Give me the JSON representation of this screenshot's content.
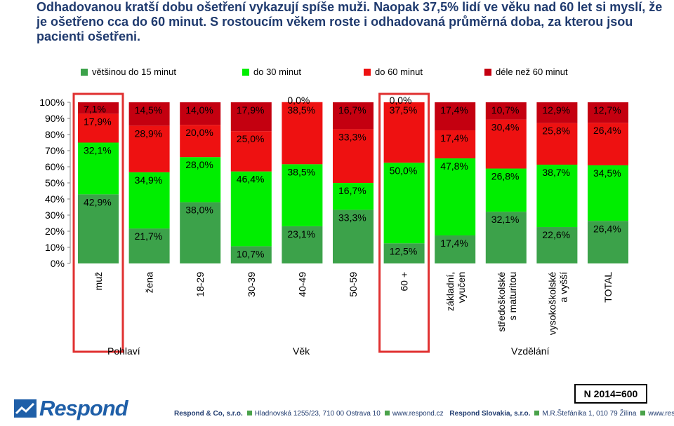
{
  "headline": "Odhadovanou kratší dobu ošetření vykazují spíše muži. Naopak 37,5% lidí ve věku nad 60 let si myslí, že je ošetřeno cca do 60 minut. S rostoucím věkem roste i odhadovaná průměrná doba, za kterou jsou pacienti ošetřeni.",
  "colors": {
    "s1": "#3ca24a",
    "s2": "#00ee00",
    "s3": "#ee1111",
    "s4": "#c40010",
    "highlight": "#e03030"
  },
  "groups": [
    "Pohlaví",
    "Věk",
    "Vzdělání"
  ],
  "sample": "N 2014=600",
  "footer": {
    "company1": "Respond & Co, s.r.o.",
    "address1": "Hladnovská 1255/23, 710 00  Ostrava 10",
    "web1": "www.respond.cz",
    "company2": "Respond Slovakia, s.r.o.",
    "address2": "M.R.Štefánika 1, 010 79  Žilina",
    "web2": "www.respond.sk",
    "logo_text": "Respond"
  },
  "chart_data": {
    "type": "bar",
    "stacked": true,
    "categories": [
      "muž",
      "žena",
      "18-29",
      "30-39",
      "40-49",
      "50-59",
      "60 +",
      "základní, vyučen",
      "středoškolské s maturitou",
      "vysokoškolské a vyšší",
      "TOTAL"
    ],
    "ylim": [
      0,
      100
    ],
    "yticks": [
      "0%",
      "10%",
      "20%",
      "30%",
      "40%",
      "50%",
      "60%",
      "70%",
      "80%",
      "90%",
      "100%"
    ],
    "series": [
      {
        "name": "většinou do 15 minut",
        "values": [
          42.9,
          21.7,
          38.0,
          10.7,
          23.1,
          33.3,
          12.5,
          17.4,
          32.1,
          22.6,
          26.4
        ],
        "labels": [
          "42,9%",
          "21,7%",
          "38,0%",
          "10,7%",
          "23,1%",
          "33,3%",
          "12,5%",
          "17,4%",
          "32,1%",
          "22,6%",
          "26,4%"
        ]
      },
      {
        "name": "do 30 minut",
        "values": [
          32.1,
          34.9,
          28.0,
          46.4,
          38.5,
          16.7,
          50.0,
          47.8,
          26.8,
          38.7,
          34.5
        ],
        "labels": [
          "32,1%",
          "34,9%",
          "28,0%",
          "46,4%",
          "38,5%",
          "16,7%",
          "50,0%",
          "47,8%",
          "26,8%",
          "38,7%",
          "34,5%"
        ]
      },
      {
        "name": "do 60 minut",
        "values": [
          17.9,
          28.9,
          20.0,
          25.0,
          38.5,
          33.3,
          37.5,
          17.4,
          30.4,
          25.8,
          26.4
        ],
        "labels": [
          "17,9%",
          "28,9%",
          "20,0%",
          "25,0%",
          "38,5%",
          "33,3%",
          "37,5%",
          "17,4%",
          "30,4%",
          "25,8%",
          "26,4%"
        ]
      },
      {
        "name": "déle než 60 minut",
        "values": [
          7.1,
          14.5,
          14.0,
          17.9,
          0.0,
          16.7,
          0.0,
          17.4,
          10.7,
          12.9,
          12.7
        ],
        "labels": [
          "7,1%",
          "14,5%",
          "14,0%",
          "17,9%",
          "0,0%",
          "16,7%",
          "0,0%",
          "17,4%",
          "10,7%",
          "12,9%",
          "12,7%"
        ]
      }
    ],
    "highlighted": [
      "muž",
      "60 +"
    ],
    "legend": "top"
  }
}
